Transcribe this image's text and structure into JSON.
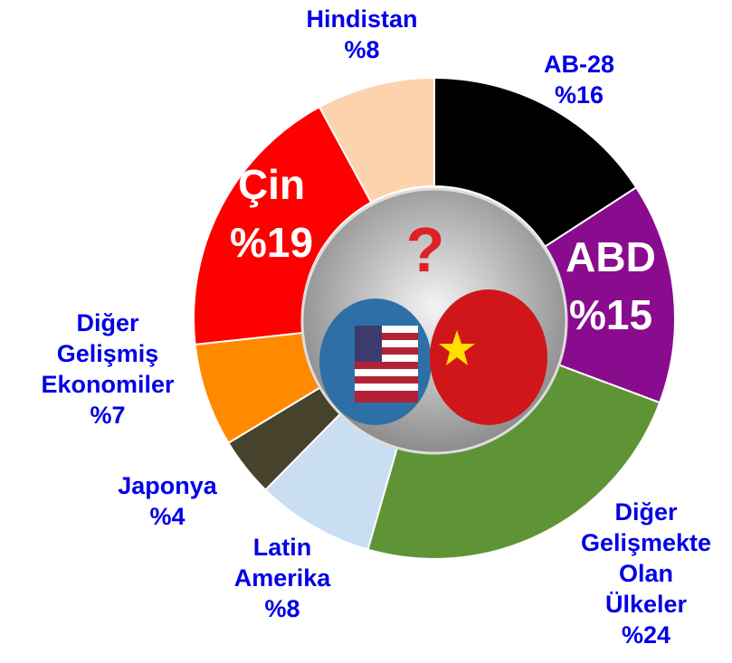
{
  "chart_data": {
    "type": "donut",
    "categories": [
      "AB-28",
      "ABD",
      "Diğer\nGelişmekte\nOlan\nÜlkeler",
      "Latin\nAmerika",
      "Japonya",
      "Diğer\nGelişmiş\nEkonomiler",
      "Çin",
      "Hindistan"
    ],
    "values": [
      16,
      15,
      24,
      8,
      4,
      7,
      19,
      8
    ],
    "value_labels": [
      "%16",
      "%15",
      "%24",
      "%8",
      "%4",
      "%7",
      "%19",
      "%8"
    ],
    "colors": [
      "#000000",
      "#8a0c8e",
      "#5f9436",
      "#c9def3",
      "#47422c",
      "#ff8a00",
      "#ff0000",
      "#fcd3ad"
    ],
    "label_colors": [
      "#0000e6",
      "#ffffff",
      "#0000e6",
      "#0000e6",
      "#0000e6",
      "#0000e6",
      "#ffffff",
      "#0000e6"
    ]
  }
}
